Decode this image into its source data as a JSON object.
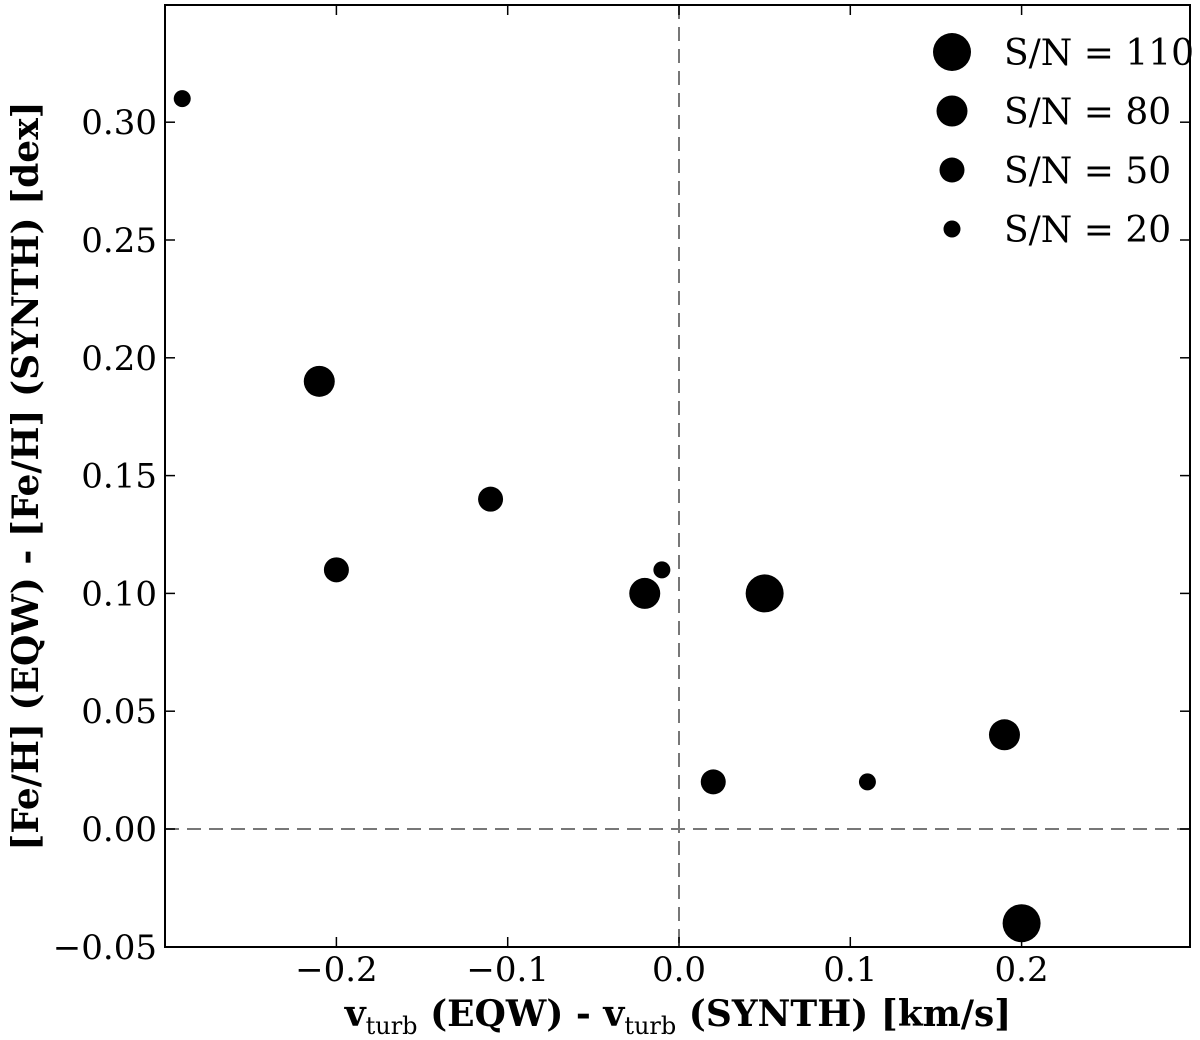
{
  "chart_data": {
    "type": "scatter",
    "xlabel": {
      "base": "v",
      "sub": "turb",
      "mid": " (EQW) - v",
      "sub2": "turb",
      "tail": " (SYNTH) [km/s]"
    },
    "ylabel": "[Fe/H] (EQW) - [Fe/H] (SYNTH) [dex]",
    "xlim": [
      -0.3,
      0.3
    ],
    "ylim": [
      -0.05,
      0.35
    ],
    "xticks": [
      -0.2,
      -0.1,
      0.0,
      0.1,
      0.2
    ],
    "xtick_labels": [
      "−0.2",
      "−0.1",
      "0.0",
      "0.1",
      "0.2"
    ],
    "yticks": [
      -0.05,
      0.0,
      0.05,
      0.1,
      0.15,
      0.2,
      0.25,
      0.3
    ],
    "ytick_labels": [
      "−0.05",
      "0.00",
      "0.05",
      "0.10",
      "0.15",
      "0.20",
      "0.25",
      "0.30"
    ],
    "reference_lines": {
      "x": 0.0,
      "y": 0.0,
      "style": "dashed",
      "color": "#777777"
    },
    "marker_color": "#000000",
    "legend_placement": "top-right",
    "legend": [
      {
        "label": "S/N = 110",
        "sn": 110
      },
      {
        "label": "S/N = 80",
        "sn": 80
      },
      {
        "label": "S/N = 50",
        "sn": 50
      },
      {
        "label": "S/N = 20",
        "sn": 20
      }
    ],
    "points": [
      {
        "x": -0.29,
        "y": 0.31,
        "sn": 20
      },
      {
        "x": -0.21,
        "y": 0.19,
        "sn": 80
      },
      {
        "x": -0.2,
        "y": 0.11,
        "sn": 50
      },
      {
        "x": -0.11,
        "y": 0.14,
        "sn": 50
      },
      {
        "x": -0.02,
        "y": 0.1,
        "sn": 80
      },
      {
        "x": -0.01,
        "y": 0.11,
        "sn": 20
      },
      {
        "x": 0.05,
        "y": 0.1,
        "sn": 110
      },
      {
        "x": 0.02,
        "y": 0.02,
        "sn": 50
      },
      {
        "x": 0.11,
        "y": 0.02,
        "sn": 20
      },
      {
        "x": 0.19,
        "y": 0.04,
        "sn": 80
      },
      {
        "x": 0.2,
        "y": -0.04,
        "sn": 110
      }
    ]
  }
}
